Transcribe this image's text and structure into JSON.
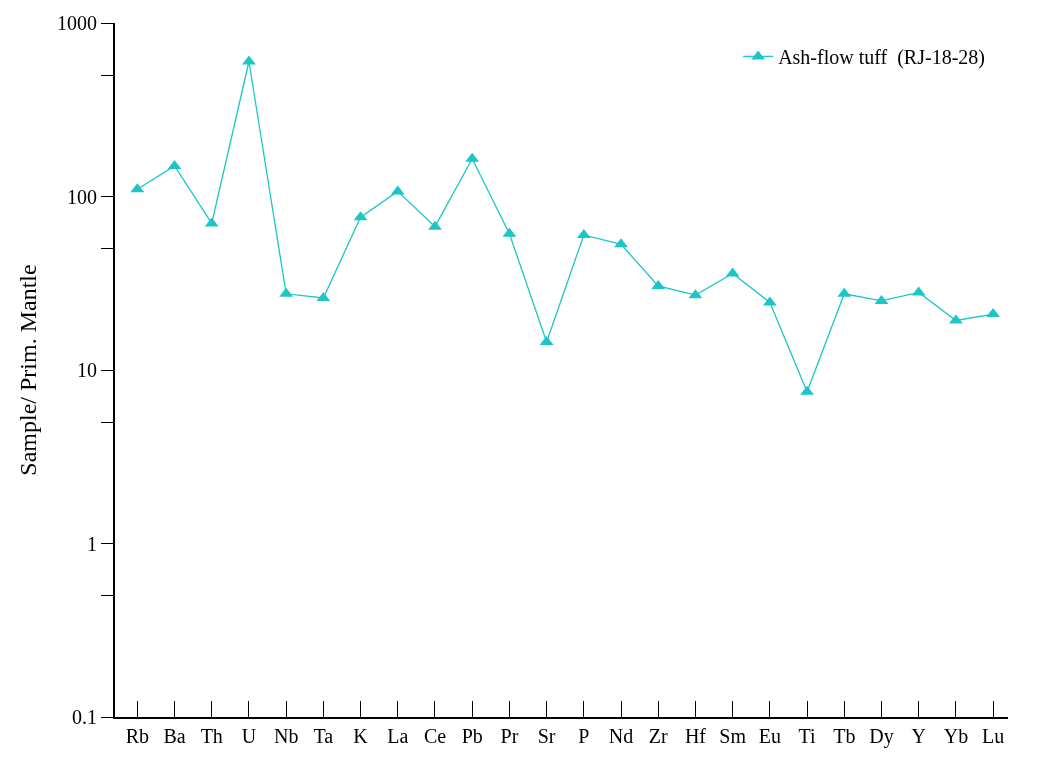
{
  "chart_data": {
    "type": "line",
    "ylabel": "Sample/ Prim. Mantle",
    "categories": [
      "Rb",
      "Ba",
      "Th",
      "U",
      "Nb",
      "Ta",
      "K",
      "La",
      "Ce",
      "Pb",
      "Pr",
      "Sr",
      "P",
      "Nd",
      "Zr",
      "Hf",
      "Sm",
      "Eu",
      "Ti",
      "Tb",
      "Dy",
      "Y",
      "Yb",
      "Lu"
    ],
    "series": [
      {
        "name": "Ash-flow tuff  (RJ-18-28)",
        "color": "#1cc6c6",
        "values": [
          110,
          150,
          70,
          600,
          27.5,
          26,
          76,
          107,
          67,
          165,
          61,
          14.5,
          60,
          53,
          30.5,
          27,
          36,
          24.5,
          7.5,
          27.5,
          25,
          28,
          19.3,
          21
        ]
      }
    ],
    "log": true,
    "ylim": [
      0.1,
      1000
    ],
    "yticks": [
      0.1,
      {
        "value": 0.5,
        "label": null
      },
      1,
      {
        "value": 5,
        "label": null
      },
      10,
      {
        "value": 50,
        "label": null
      },
      100,
      {
        "value": 500,
        "label": null
      },
      1000
    ],
    "grid": false,
    "legend": "top right",
    "marker": "triangle",
    "line_style": "solid"
  }
}
